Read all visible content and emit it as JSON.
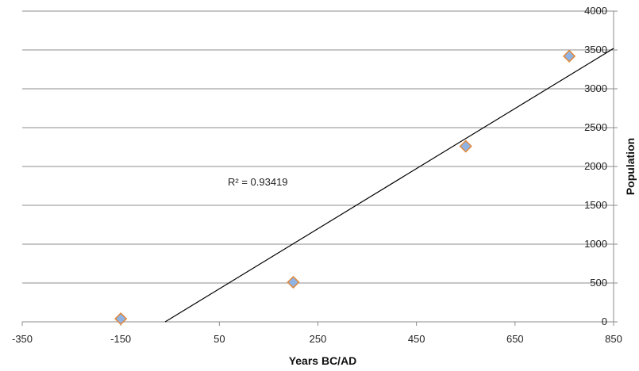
{
  "chart_data": {
    "type": "scatter",
    "title": "",
    "xlabel": "Years BC/AD",
    "ylabel": "Population",
    "xlim": [
      -350,
      850
    ],
    "ylim": [
      0,
      4000
    ],
    "x_ticks": [
      "-350",
      "-150",
      "50",
      "250",
      "450",
      "650",
      "850"
    ],
    "y_ticks": [
      "0",
      "500",
      "1000",
      "1500",
      "2000",
      "2500",
      "3000",
      "3500",
      "4000"
    ],
    "grid": "horizontal",
    "legend": "none",
    "series": [
      {
        "x": [
          -150,
          200,
          550,
          760
        ],
        "y": [
          40,
          510,
          2260,
          3420
        ],
        "marker": "diamond",
        "marker_fill": "#8fb4e3",
        "marker_edge": "#e0873a"
      }
    ],
    "trendline": {
      "type": "linear",
      "points": [
        [
          -60,
          0
        ],
        [
          850,
          3520
        ]
      ],
      "color": "#000000"
    },
    "annotation": "R² = 0.93419"
  }
}
